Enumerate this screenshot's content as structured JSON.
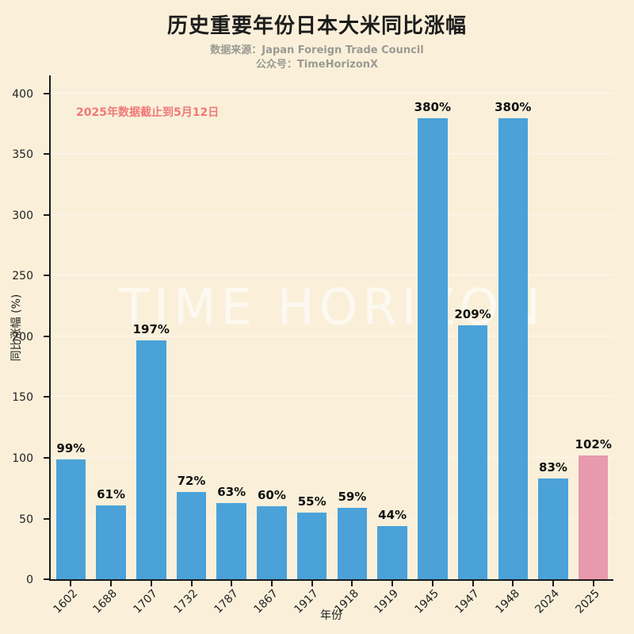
{
  "header": {
    "title": "历史重要年份日本大米同比涨幅",
    "subtitle_line1": "数据来源：Japan Foreign Trade Council",
    "subtitle_line2": "公众号：TimeHorizonX"
  },
  "annotation_text": "2025年数据截止到5月12日",
  "watermark_text": "TIME HORIZON",
  "colors": {
    "background": "#faf0da",
    "bar": "#4aa2d9",
    "highlight_bar": "#e899ad",
    "annotation_red": "#f07878",
    "axis": "#1a1a1a",
    "subtitle_gray": "#9a9a93"
  },
  "chart_data": {
    "type": "bar",
    "title": "历史重要年份日本大米同比涨幅",
    "categories": [
      "1602",
      "1688",
      "1707",
      "1732",
      "1787",
      "1867",
      "1917",
      "1918",
      "1919",
      "1945",
      "1947",
      "1948",
      "2024",
      "2025"
    ],
    "values": [
      99,
      61,
      197,
      72,
      63,
      60,
      55,
      59,
      44,
      380,
      209,
      380,
      83,
      102
    ],
    "value_labels": [
      "99%",
      "61%",
      "197%",
      "72%",
      "63%",
      "60%",
      "55%",
      "59%",
      "44%",
      "380%",
      "209%",
      "380%",
      "83%",
      "102%"
    ],
    "xlabel": "年份",
    "ylabel": "同比涨幅 (%)",
    "ylim": [
      0,
      415
    ],
    "yticks": [
      0,
      50,
      100,
      150,
      200,
      250,
      300,
      350,
      400
    ],
    "grid": true,
    "legend": "none",
    "bar_color": "#4aa2d9",
    "highlight_color": "#e899ad",
    "highlight_index": 13
  }
}
